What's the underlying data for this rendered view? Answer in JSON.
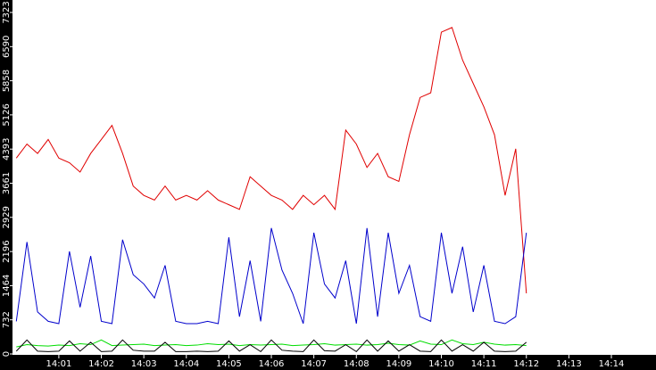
{
  "chart_data": {
    "type": "line",
    "x": [
      0,
      0.25,
      0.5,
      0.75,
      1,
      1.25,
      1.5,
      1.75,
      2,
      2.25,
      2.5,
      2.75,
      3,
      3.25,
      3.5,
      3.75,
      4,
      4.25,
      4.5,
      4.75,
      5,
      5.25,
      5.5,
      5.75,
      6,
      6.25,
      6.5,
      6.75,
      7,
      7.25,
      7.5,
      7.75,
      8,
      8.25,
      8.5,
      8.75,
      9,
      9.25,
      9.5,
      9.75,
      10,
      10.25,
      10.5,
      10.75,
      11,
      11.25,
      11.5,
      11.75,
      12
    ],
    "series": [
      {
        "color": "#e00000",
        "values": [
          4200,
          4500,
          4300,
          4600,
          4200,
          4100,
          3900,
          4300,
          4600,
          4900,
          4300,
          3600,
          3400,
          3300,
          3600,
          3300,
          3400,
          3300,
          3500,
          3300,
          3200,
          3100,
          3800,
          3600,
          3400,
          3300,
          3100,
          3400,
          3200,
          3400,
          3100,
          4800,
          4500,
          4000,
          4300,
          3800,
          3700,
          4700,
          5500,
          5600,
          6900,
          7000,
          6300,
          5800,
          5300,
          4700,
          3400,
          4400,
          1300
        ]
      },
      {
        "color": "#0000cc",
        "values": [
          700,
          2400,
          900,
          700,
          650,
          2200,
          1000,
          2100,
          700,
          650,
          2450,
          1700,
          1500,
          1200,
          1900,
          700,
          650,
          650,
          700,
          650,
          2500,
          800,
          2000,
          700,
          2700,
          1800,
          1300,
          650,
          2600,
          1500,
          1200,
          2000,
          650,
          2700,
          800,
          2600,
          1300,
          1900,
          800,
          700,
          2600,
          1300,
          2300,
          900,
          1900,
          700,
          650,
          800,
          2600
        ]
      },
      {
        "color": "#00dd00",
        "values": [
          150,
          200,
          180,
          170,
          190,
          180,
          220,
          200,
          300,
          180,
          190,
          200,
          210,
          180,
          190,
          200,
          180,
          190,
          220,
          200,
          210,
          180,
          200,
          190,
          200,
          210,
          180,
          190,
          200,
          220,
          190,
          200,
          210,
          190,
          200,
          230,
          200,
          190,
          280,
          210,
          200,
          300,
          220,
          200,
          250,
          210,
          190,
          200,
          180
        ]
      },
      {
        "color": "#000000",
        "values": [
          60,
          300,
          60,
          50,
          60,
          280,
          60,
          250,
          50,
          60,
          300,
          80,
          60,
          60,
          250,
          50,
          50,
          60,
          50,
          60,
          280,
          60,
          200,
          50,
          300,
          80,
          60,
          50,
          300,
          70,
          60,
          200,
          50,
          300,
          60,
          280,
          60,
          200,
          60,
          50,
          300,
          60,
          200,
          60,
          250,
          60,
          50,
          60,
          250
        ]
      }
    ],
    "xlim": [
      -0.09,
      15.05
    ],
    "xticks": [
      {
        "value": 1,
        "label": "14:01"
      },
      {
        "value": 2,
        "label": "14:02"
      },
      {
        "value": 3,
        "label": "14:03"
      },
      {
        "value": 4,
        "label": "14:04"
      },
      {
        "value": 5,
        "label": "14:05"
      },
      {
        "value": 6,
        "label": "14:06"
      },
      {
        "value": 7,
        "label": "14:07"
      },
      {
        "value": 8,
        "label": "14:08"
      },
      {
        "value": 9,
        "label": "14:09"
      },
      {
        "value": 10,
        "label": "14:10"
      },
      {
        "value": 11,
        "label": "14:11"
      },
      {
        "value": 12,
        "label": "14:12"
      },
      {
        "value": 13,
        "label": "14:13"
      },
      {
        "value": 14,
        "label": "14:14"
      }
    ],
    "ylim": [
      0,
      7590
    ],
    "yticks": [
      0,
      732,
      1464,
      2196,
      2929,
      3661,
      4393,
      5126,
      5858,
      6590,
      7323
    ]
  }
}
